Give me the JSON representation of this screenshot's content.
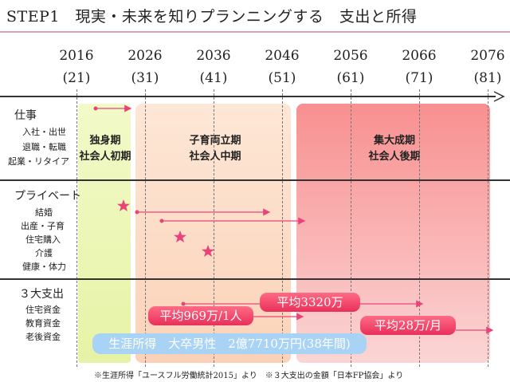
{
  "title": "STEP1　現実・未来を知りプランニングする　支出と所得",
  "timeline": {
    "years": [
      "2016",
      "2026",
      "2036",
      "2046",
      "2056",
      "2066",
      "2076"
    ],
    "ages": [
      "(21)",
      "(31)",
      "(41)",
      "(51)",
      "(61)",
      "(71)",
      "(81)"
    ]
  },
  "sections": {
    "work": {
      "label": "仕事",
      "items": [
        "入社・出世",
        "退職・転職",
        "起業・リタイア"
      ]
    },
    "private": {
      "label": "プライベート",
      "items": [
        "結婚",
        "出産・子育",
        "住宅購入",
        "介護",
        "健康・体力"
      ]
    },
    "expenses": {
      "label": "３大支出",
      "items": [
        "住宅資金",
        "教育資金",
        "老後資金"
      ]
    }
  },
  "periods": {
    "p1": {
      "line1": "独身期",
      "line2": "社会人初期",
      "color": "#eef7b8"
    },
    "p2": {
      "line1": "子育両立期",
      "line2": "社会人中期",
      "color": "#fde0cc"
    },
    "p3": {
      "line1": "集大成期",
      "line2": "社会人後期",
      "color": "#f78a8a"
    }
  },
  "pills": {
    "housing": "平均3320万",
    "education": "平均969万/1人",
    "retirement": "平均28万/月",
    "income": "生涯所得　大卒男性　2億7710万円(38年間)"
  },
  "footnote": "※生涯所得「ユースフル労働統計2015」より　※３大支出の金額「日本FP協会」より",
  "colors": {
    "accent": "#e8305a",
    "arrow": "#e8447a",
    "star": "#e8447a",
    "blue": "#a9d3f5"
  }
}
